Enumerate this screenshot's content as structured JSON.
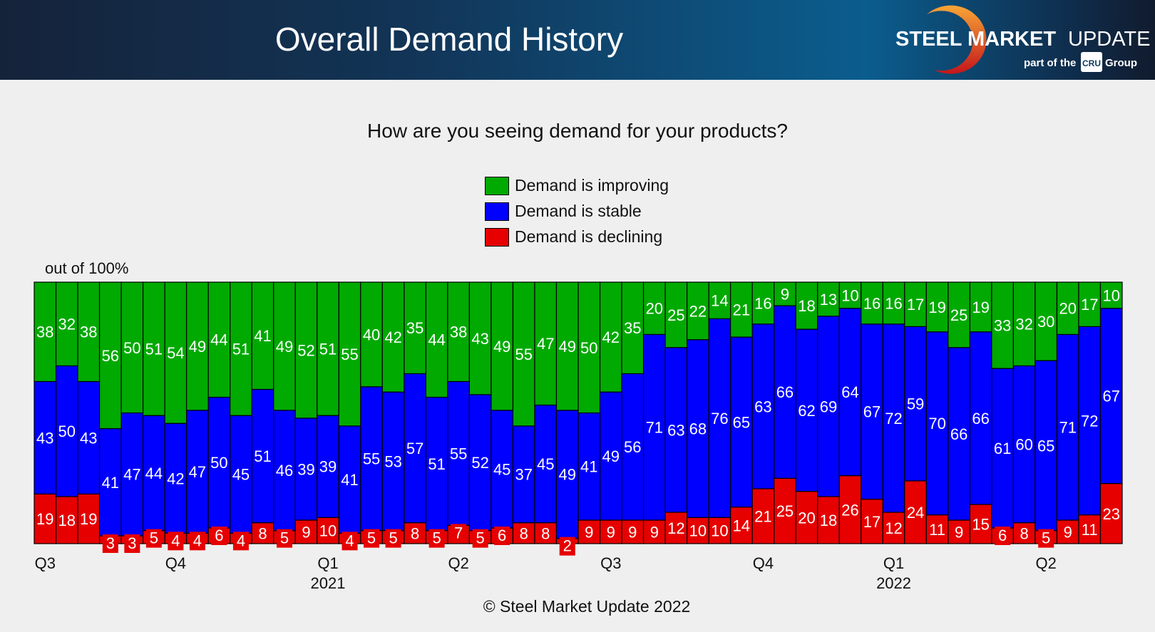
{
  "header": {
    "title": "Overall Demand History",
    "logo": {
      "brand_bold": "STEEL MARKET",
      "brand_light": "UPDATE",
      "tagline_pre": "part of the",
      "tagline_mark": "CRU",
      "tagline_post": "Group"
    }
  },
  "footer": {
    "copyright": "© Steel Market Update 2022"
  },
  "chart_data": {
    "type": "bar",
    "stacked": true,
    "title": "How are you seeing demand for your products?",
    "ylabel": "out of 100%",
    "ylim": [
      0,
      100
    ],
    "grid": false,
    "legend_position": "top-center",
    "colors": {
      "improving": "#00aa00",
      "stable": "#0000ff",
      "declining": "#e60000"
    },
    "x_tick_labels": [
      {
        "bar": 1,
        "quarter": "Q3",
        "year": ""
      },
      {
        "bar": 7,
        "quarter": "Q4",
        "year": ""
      },
      {
        "bar": 14,
        "quarter": "Q1",
        "year": "2021"
      },
      {
        "bar": 20,
        "quarter": "Q2",
        "year": ""
      },
      {
        "bar": 27,
        "quarter": "Q3",
        "year": ""
      },
      {
        "bar": 34,
        "quarter": "Q4",
        "year": ""
      },
      {
        "bar": 40,
        "quarter": "Q1",
        "year": "2022"
      },
      {
        "bar": 47,
        "quarter": "Q2",
        "year": ""
      }
    ],
    "series": [
      {
        "key": "declining",
        "name": "Demand is declining",
        "values": [
          19,
          18,
          19,
          3,
          3,
          5,
          4,
          4,
          6,
          4,
          8,
          5,
          9,
          10,
          4,
          5,
          5,
          8,
          5,
          7,
          5,
          6,
          8,
          8,
          2,
          9,
          9,
          9,
          9,
          12,
          10,
          10,
          14,
          21,
          25,
          20,
          18,
          26,
          17,
          12,
          24,
          11,
          9,
          15,
          6,
          8,
          5,
          9,
          11,
          23
        ]
      },
      {
        "key": "stable",
        "name": "Demand is stable",
        "values": [
          43,
          50,
          43,
          41,
          47,
          44,
          42,
          47,
          50,
          45,
          51,
          46,
          39,
          39,
          41,
          55,
          53,
          57,
          51,
          55,
          52,
          45,
          37,
          45,
          49,
          41,
          49,
          56,
          71,
          63,
          68,
          76,
          65,
          63,
          66,
          62,
          69,
          64,
          67,
          72,
          59,
          70,
          66,
          66,
          61,
          60,
          65,
          71,
          72,
          67
        ]
      },
      {
        "key": "improving",
        "name": "Demand is improving",
        "values": [
          38,
          32,
          38,
          56,
          50,
          51,
          54,
          49,
          44,
          51,
          41,
          49,
          52,
          51,
          55,
          40,
          42,
          35,
          44,
          38,
          43,
          49,
          55,
          47,
          49,
          50,
          42,
          35,
          20,
          25,
          22,
          14,
          21,
          16,
          9,
          18,
          13,
          10,
          16,
          16,
          17,
          19,
          25,
          19,
          33,
          32,
          30,
          20,
          17,
          10
        ]
      }
    ]
  }
}
